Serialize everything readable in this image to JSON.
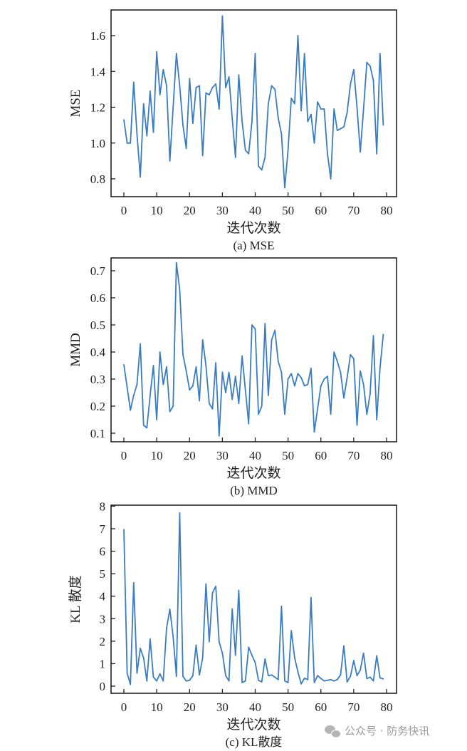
{
  "chart_data": [
    {
      "type": "line",
      "title": "(a) MSE",
      "xlabel": "迭代次数",
      "ylabel": "MSE",
      "xlim": [
        0,
        80
      ],
      "ylim": [
        0.72,
        1.75
      ],
      "xticks": [
        0,
        10,
        20,
        30,
        40,
        50,
        60,
        70,
        80
      ],
      "yticks": [
        0.8,
        1.0,
        1.2,
        1.4,
        1.6
      ],
      "ytick_labels": [
        "0.8",
        "1.0",
        "1.2",
        "1.4",
        "1.6"
      ],
      "grid": false,
      "color": "#3a7cc2",
      "values": [
        1.13,
        1.0,
        1.0,
        1.34,
        1.05,
        0.81,
        1.22,
        1.04,
        1.29,
        1.06,
        1.51,
        1.27,
        1.41,
        1.32,
        0.9,
        1.2,
        1.5,
        1.32,
        1.1,
        0.97,
        1.36,
        1.11,
        1.31,
        1.32,
        0.93,
        1.28,
        1.27,
        1.31,
        1.33,
        1.19,
        1.71,
        1.31,
        1.37,
        1.14,
        0.92,
        1.38,
        1.12,
        0.96,
        0.94,
        1.12,
        1.5,
        0.87,
        0.85,
        0.92,
        1.22,
        1.32,
        1.3,
        1.14,
        1.05,
        0.75,
        0.96,
        1.25,
        1.22,
        1.6,
        1.18,
        1.5,
        1.12,
        1.16,
        1.0,
        1.23,
        1.19,
        1.19,
        0.94,
        0.8,
        1.19,
        1.07,
        1.08,
        1.09,
        1.17,
        1.33,
        1.41,
        1.2,
        0.95,
        1.19,
        1.45,
        1.43,
        1.35,
        0.94,
        1.5,
        1.1
      ]
    },
    {
      "type": "line",
      "title": "(b) MMD",
      "xlabel": "迭代次数",
      "ylabel": "MMD",
      "xlim": [
        0,
        80
      ],
      "ylim": [
        0.07,
        0.75
      ],
      "xticks": [
        0,
        10,
        20,
        30,
        40,
        50,
        60,
        70,
        80
      ],
      "yticks": [
        0.1,
        0.2,
        0.3,
        0.4,
        0.5,
        0.6,
        0.7
      ],
      "ytick_labels": [
        "0.1",
        "0.2",
        "0.3",
        "0.4",
        "0.5",
        "0.6",
        "0.7"
      ],
      "grid": false,
      "color": "#3a7cc2",
      "values": [
        0.353,
        0.27,
        0.185,
        0.24,
        0.28,
        0.43,
        0.13,
        0.12,
        0.24,
        0.35,
        0.15,
        0.4,
        0.28,
        0.345,
        0.18,
        0.2,
        0.73,
        0.63,
        0.39,
        0.33,
        0.26,
        0.275,
        0.345,
        0.22,
        0.445,
        0.35,
        0.21,
        0.19,
        0.36,
        0.09,
        0.325,
        0.25,
        0.325,
        0.225,
        0.31,
        0.21,
        0.385,
        0.26,
        0.135,
        0.5,
        0.485,
        0.17,
        0.2,
        0.505,
        0.24,
        0.445,
        0.48,
        0.365,
        0.325,
        0.17,
        0.3,
        0.32,
        0.275,
        0.32,
        0.305,
        0.275,
        0.28,
        0.34,
        0.105,
        0.19,
        0.275,
        0.3,
        0.31,
        0.17,
        0.4,
        0.365,
        0.325,
        0.23,
        0.305,
        0.39,
        0.375,
        0.13,
        0.33,
        0.28,
        0.17,
        0.245,
        0.46,
        0.15,
        0.34,
        0.465
      ]
    },
    {
      "type": "line",
      "title": "(c) KL散度",
      "xlabel": "迭代次数",
      "ylabel": "KL 散度",
      "xlim": [
        0,
        80
      ],
      "ylim": [
        -0.1,
        8.0
      ],
      "xticks": [
        0,
        10,
        20,
        30,
        40,
        50,
        60,
        70,
        80
      ],
      "yticks": [
        0,
        1,
        2,
        3,
        4,
        5,
        6,
        7,
        8
      ],
      "ytick_labels": [
        "0",
        "1",
        "2",
        "3",
        "4",
        "5",
        "6",
        "7",
        "8"
      ],
      "grid": false,
      "color": "#3a7cc2",
      "values": [
        6.96,
        0.58,
        0.08,
        4.6,
        0.58,
        1.68,
        1.26,
        0.23,
        2.1,
        0.4,
        0.23,
        0.55,
        0.23,
        2.58,
        3.42,
        2.2,
        0.44,
        7.7,
        0.44,
        0.23,
        0.26,
        0.47,
        1.82,
        0.5,
        1.26,
        4.55,
        1.98,
        4.15,
        4.44,
        1.97,
        1.47,
        0.47,
        0.23,
        3.44,
        1.37,
        4.26,
        0.16,
        0.23,
        1.73,
        1.37,
        1.05,
        0.26,
        0.19,
        1.21,
        0.47,
        0.5,
        0.4,
        0.29,
        3.55,
        0.23,
        0.16,
        2.47,
        1.26,
        0.63,
        0.1,
        0.35,
        0.29,
        3.94,
        0.16,
        0.47,
        0.34,
        0.23,
        0.26,
        0.29,
        0.23,
        0.29,
        0.5,
        1.79,
        0.19,
        0.44,
        1.14,
        0.47,
        0.72,
        1.47,
        0.34,
        0.4,
        0.23,
        1.35,
        0.37,
        0.32
      ]
    }
  ],
  "watermark": "公众号 · 防务快讯"
}
